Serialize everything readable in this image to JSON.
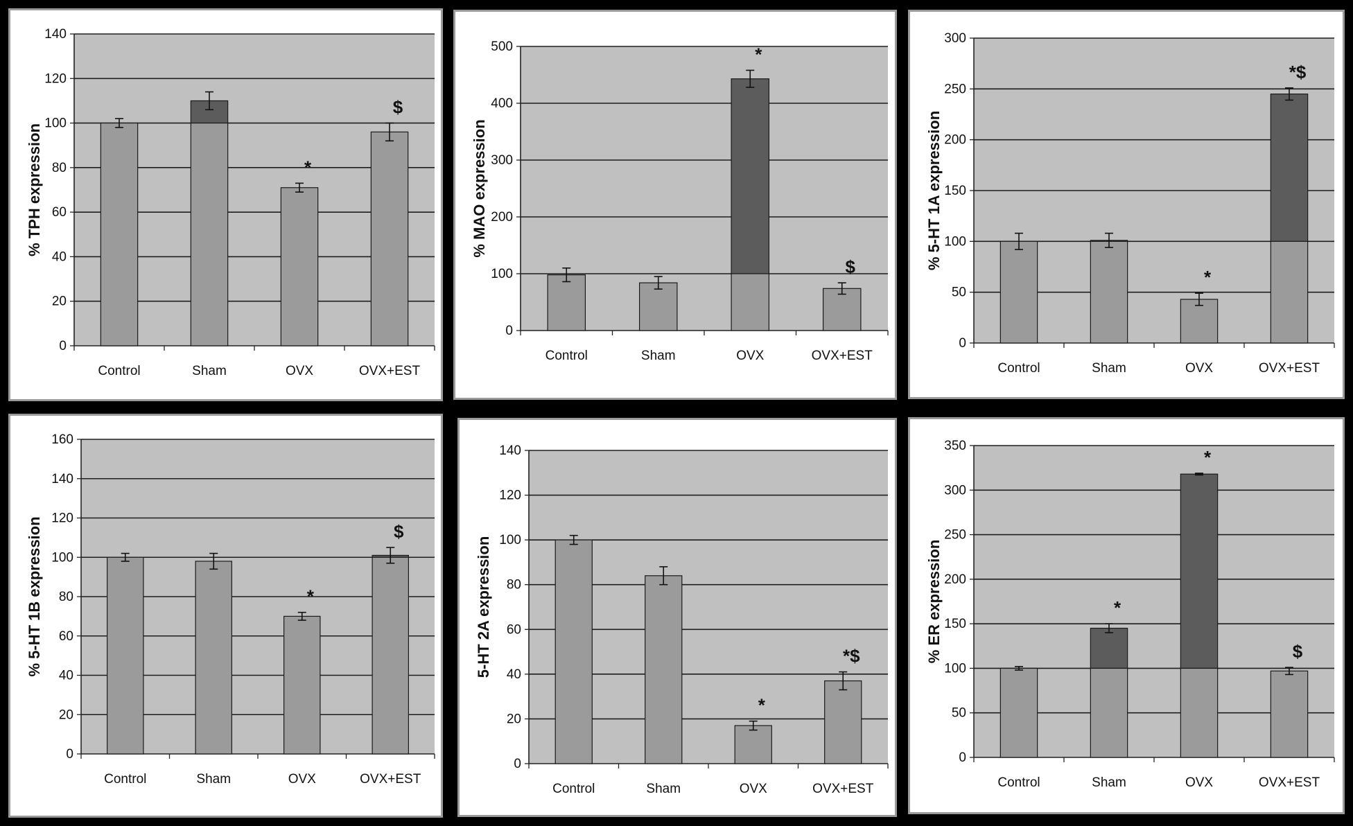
{
  "colors": {
    "plot_background": "#c0c0c0",
    "bar_light": "#9b9b9b",
    "bar_dark": "#5c5c5c",
    "gridline": "#1e1e1e",
    "page_background": "#000000"
  },
  "chart_data": [
    {
      "type": "bar",
      "categories": [
        "Control",
        "Sham",
        "OVX",
        "OVX+EST"
      ],
      "values": [
        100,
        110,
        71,
        96
      ],
      "errors": [
        2,
        4,
        2,
        4
      ],
      "significance": [
        "",
        "",
        "*",
        "$"
      ],
      "ylabel": "% TPH expression",
      "ylim": [
        0,
        140
      ],
      "yticks": [
        0,
        20,
        40,
        60,
        80,
        100,
        120,
        140
      ],
      "grid": true
    },
    {
      "type": "bar",
      "categories": [
        "Control",
        "Sham",
        "OVX",
        "OVX+EST"
      ],
      "values": [
        98,
        84,
        443,
        74
      ],
      "errors": [
        12,
        11,
        15,
        10
      ],
      "significance": [
        "",
        "",
        "*",
        "$"
      ],
      "ylabel": "% MAO expression",
      "ylim": [
        0,
        500
      ],
      "yticks": [
        0,
        100,
        200,
        300,
        400,
        500
      ],
      "grid": true
    },
    {
      "type": "bar",
      "categories": [
        "Control",
        "Sham",
        "OVX",
        "OVX+EST"
      ],
      "values": [
        100,
        101,
        43,
        245
      ],
      "errors": [
        8,
        7,
        6,
        6
      ],
      "significance": [
        "",
        "",
        "*",
        "*$"
      ],
      "ylabel": "% 5-HT 1A expression",
      "ylim": [
        0,
        300
      ],
      "yticks": [
        0,
        50,
        100,
        150,
        200,
        250,
        300
      ],
      "grid": true
    },
    {
      "type": "bar",
      "categories": [
        "Control",
        "Sham",
        "OVX",
        "OVX+EST"
      ],
      "values": [
        100,
        98,
        70,
        101
      ],
      "errors": [
        2,
        4,
        2,
        4
      ],
      "significance": [
        "",
        "",
        "*",
        "$"
      ],
      "ylabel": "% 5-HT 1B expression",
      "ylim": [
        0,
        160
      ],
      "yticks": [
        0,
        20,
        40,
        60,
        80,
        100,
        120,
        140,
        160
      ],
      "grid": true
    },
    {
      "type": "bar",
      "categories": [
        "Control",
        "Sham",
        "OVX",
        "OVX+EST"
      ],
      "values": [
        100,
        84,
        17,
        37
      ],
      "errors": [
        2,
        4,
        2,
        4
      ],
      "significance": [
        "",
        "",
        "*",
        "*$"
      ],
      "ylabel": "5-HT 2A expression",
      "ylim": [
        0,
        140
      ],
      "yticks": [
        0,
        20,
        40,
        60,
        80,
        100,
        120,
        140
      ],
      "grid": true
    },
    {
      "type": "bar",
      "categories": [
        "Control",
        "Sham",
        "OVX",
        "OVX+EST"
      ],
      "values": [
        100,
        145,
        318,
        97
      ],
      "errors": [
        2,
        5,
        1,
        4
      ],
      "significance": [
        "",
        "*",
        "*",
        "$"
      ],
      "ylabel": "% ER expression",
      "ylim": [
        0,
        350
      ],
      "yticks": [
        0,
        50,
        100,
        150,
        200,
        250,
        300,
        350
      ],
      "grid": true
    }
  ]
}
